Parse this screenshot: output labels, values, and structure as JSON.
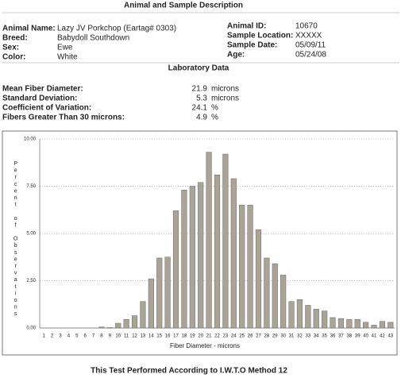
{
  "header": {
    "title": "Animal and Sample Description"
  },
  "animal": {
    "left": [
      [
        "Animal Name:",
        "Lazy JV Porkchop (Eartag# 0303)"
      ],
      [
        "Breed:",
        "Babydoll Southdown"
      ],
      [
        "Sex:",
        "Ewe"
      ],
      [
        "Color:",
        "White"
      ]
    ],
    "right": [
      [
        "Animal ID:",
        "10670"
      ],
      [
        "Sample Location:",
        "XXXXX"
      ],
      [
        "Sample Date:",
        "05/09/11"
      ],
      [
        "Age:",
        "05/24/08"
      ]
    ]
  },
  "lab": {
    "title": "Laboratory Data",
    "rows": [
      [
        "Mean Fiber Diameter:",
        21.9,
        "microns"
      ],
      [
        "Standard Deviation:",
        5.3,
        "microns"
      ],
      [
        "Coefficient of Variation:",
        24.1,
        "%"
      ],
      [
        "Fibers Greater Than 30 microns:",
        4.9,
        "%"
      ]
    ]
  },
  "chart_data": {
    "type": "bar",
    "x_label": "Fiber Diameter - microns",
    "y_label": "Percent of Observations",
    "categories": [
      "1",
      "2",
      "3",
      "4",
      "5",
      "6",
      "7",
      "8",
      "9",
      "10",
      "11",
      "12",
      "13",
      "14",
      "15",
      "16",
      "17",
      "18",
      "19",
      "20",
      "21",
      "22",
      "23",
      "24",
      "25",
      "26",
      "27",
      "28",
      "29",
      "30",
      "31",
      "32",
      "33",
      "34",
      "35",
      "36",
      "37",
      "38",
      "39",
      "40",
      "41",
      "42",
      "43"
    ],
    "values": [
      0,
      0,
      0,
      0,
      0,
      0,
      0,
      0.05,
      0.02,
      0.25,
      0.45,
      0.65,
      1.4,
      2.6,
      3.7,
      3.75,
      6.2,
      7.3,
      7.5,
      7.7,
      9.3,
      8.1,
      9.2,
      7.9,
      6.5,
      6.5,
      5.2,
      3.7,
      3.4,
      2.8,
      1.4,
      1.5,
      1.2,
      1.0,
      0.9,
      0.55,
      0.5,
      0.45,
      0.45,
      0.3,
      0.15,
      0.35,
      0.3
    ],
    "color": "#aaa398",
    "ylim": [
      0,
      10
    ],
    "yticks": [
      {
        "value": 0,
        "label": "0.00"
      },
      {
        "value": 2.5,
        "label": "2.50"
      },
      {
        "value": 5,
        "label": "5.00"
      },
      {
        "value": 7.5,
        "label": "7.50"
      },
      {
        "value": 10,
        "label": "10.00"
      }
    ],
    "grid": true
  },
  "footer": {
    "text": "This Test Performed According to I.W.T.O Method 12"
  }
}
